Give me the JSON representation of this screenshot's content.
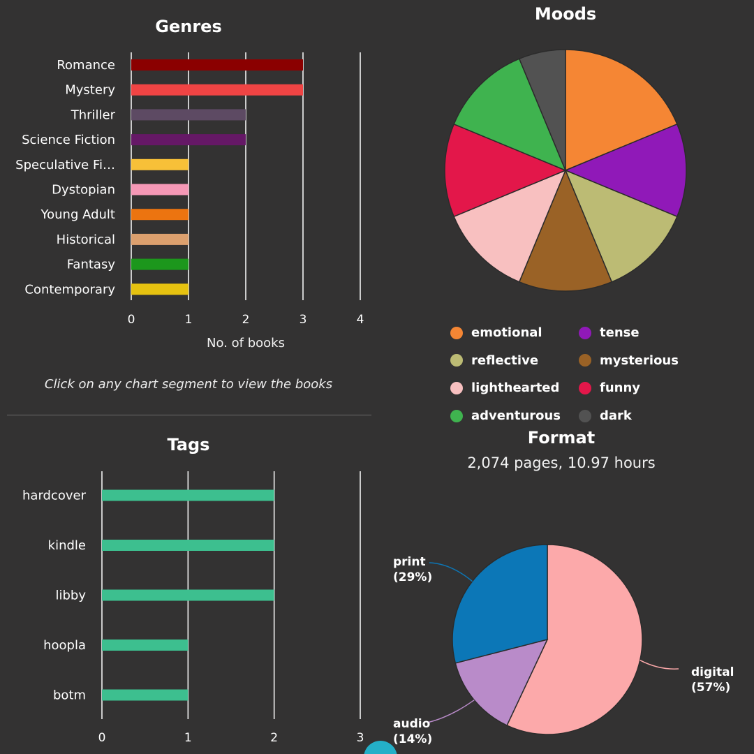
{
  "genres": {
    "title": "Genres",
    "xlabel": "No. of books",
    "hint": "Click on any chart segment to view the books"
  },
  "tags": {
    "title": "Tags"
  },
  "moods": {
    "title": "Moods"
  },
  "format": {
    "title": "Format",
    "summary": "2,074 pages, 10.97 hours"
  },
  "chart_data": [
    {
      "id": "genres",
      "type": "bar",
      "orientation": "horizontal",
      "title": "Genres",
      "xlabel": "No. of books",
      "ylabel": "",
      "xlim": [
        0,
        4
      ],
      "xticks": [
        0,
        1,
        2,
        3,
        4
      ],
      "categories": [
        "Romance",
        "Mystery",
        "Thriller",
        "Science Fiction",
        "Speculative Fi…",
        "Dystopian",
        "Young Adult",
        "Historical",
        "Fantasy",
        "Contemporary"
      ],
      "values": [
        3,
        3,
        2,
        2,
        1,
        1,
        1,
        1,
        1,
        1
      ],
      "colors": [
        "#8b0000",
        "#f04444",
        "#5d4a63",
        "#651866",
        "#f7c038",
        "#f598b6",
        "#ec7410",
        "#dca06e",
        "#1c971c",
        "#e6c210"
      ]
    },
    {
      "id": "tags",
      "type": "bar",
      "orientation": "horizontal",
      "title": "Tags",
      "xlim": [
        0,
        3
      ],
      "xticks": [
        0,
        1,
        2,
        3
      ],
      "categories": [
        "hardcover",
        "kindle",
        "libby",
        "hoopla",
        "botm"
      ],
      "values": [
        2,
        2,
        2,
        1,
        1
      ],
      "color": "#3dbf8f"
    },
    {
      "id": "moods",
      "type": "pie",
      "title": "Moods",
      "labels": [
        "emotional",
        "tense",
        "reflective",
        "mysterious",
        "lighthearted",
        "funny",
        "adventurous",
        "dark"
      ],
      "values": [
        3,
        2,
        2,
        2,
        2,
        2,
        2,
        1
      ],
      "colors": [
        "#f58634",
        "#9019b8",
        "#bcbb74",
        "#9a6226",
        "#f8c0c0",
        "#e3174a",
        "#3fb34f",
        "#525252"
      ],
      "legend": "bottom"
    },
    {
      "id": "format",
      "type": "pie",
      "title": "Format",
      "subtitle": "2,074 pages, 10.97 hours",
      "labels": [
        "digital",
        "audio",
        "print"
      ],
      "values": [
        57,
        14,
        29
      ],
      "percent_labels": [
        "(57%)",
        "(14%)",
        "(29%)"
      ],
      "colors": [
        "#fca9aa",
        "#b98bc9",
        "#0c77b7"
      ]
    }
  ]
}
